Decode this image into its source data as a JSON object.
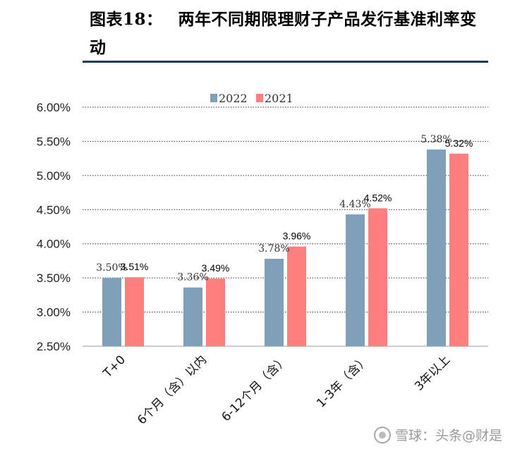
{
  "header": {
    "figure_number": "图表18：",
    "title": "两年不同期限理财子产品发行基准利率变动"
  },
  "chart_data": {
    "type": "bar",
    "title": "两年不同期限理财子产品发行基准利率变动",
    "xlabel": "",
    "ylabel": "",
    "categories": [
      "T+0",
      "6个月（含）以内",
      "6-12个月（含）",
      "1-3年（含）",
      "3年以上"
    ],
    "series": [
      {
        "name": "2022",
        "color": "#809fb9",
        "values": [
          3.5,
          3.36,
          3.78,
          4.43,
          5.38
        ],
        "labels": [
          "3.50%",
          "3.36%",
          "3.78%",
          "4.43%",
          "5.38%"
        ]
      },
      {
        "name": "2021",
        "color": "#ff7f7f",
        "values": [
          3.51,
          3.49,
          3.96,
          4.52,
          5.32
        ],
        "labels": [
          "3.51%",
          "3.49%",
          "3.96%",
          "4.52%",
          "5.32%"
        ]
      }
    ],
    "ylim": [
      2.5,
      6.0
    ],
    "yticks": [
      2.5,
      3.0,
      3.5,
      4.0,
      4.5,
      5.0,
      5.5,
      6.0
    ],
    "ytick_labels": [
      "2.50%",
      "3.00%",
      "3.50%",
      "4.00%",
      "4.50%",
      "5.00%",
      "5.50%",
      "6.00%"
    ],
    "grid": "horizontal dotted",
    "legend": "top-center"
  },
  "watermark": {
    "text": "雪球：头条@财是"
  }
}
